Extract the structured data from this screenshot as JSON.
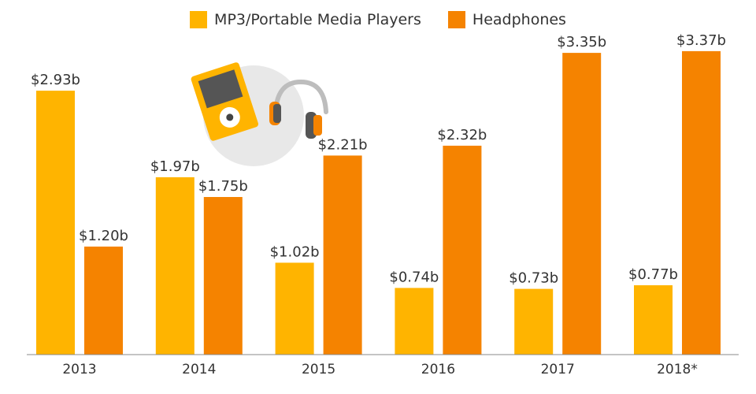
{
  "chart_data": {
    "type": "bar",
    "categories": [
      "2013",
      "2014",
      "2015",
      "2016",
      "2017",
      "2018*"
    ],
    "series": [
      {
        "name": "MP3/Portable Media Players",
        "values": [
          2.93,
          1.97,
          1.02,
          0.74,
          0.73,
          0.77
        ],
        "labels": [
          "$2.93b",
          "$1.97b",
          "$1.02b",
          "$0.74b",
          "$0.73b",
          "$0.77b"
        ],
        "color": "#FFB400"
      },
      {
        "name": "Headphones",
        "values": [
          1.2,
          1.75,
          2.21,
          2.32,
          3.35,
          3.37
        ],
        "labels": [
          "$1.20b",
          "$1.75b",
          "$2.21b",
          "$2.32b",
          "$3.35b",
          "$3.37b"
        ],
        "color": "#F58300"
      }
    ],
    "ylim": [
      0,
      3.5
    ],
    "legend_position": "top-center",
    "grid": false
  },
  "icons": [
    "mp3-player-icon",
    "headphones-icon"
  ]
}
